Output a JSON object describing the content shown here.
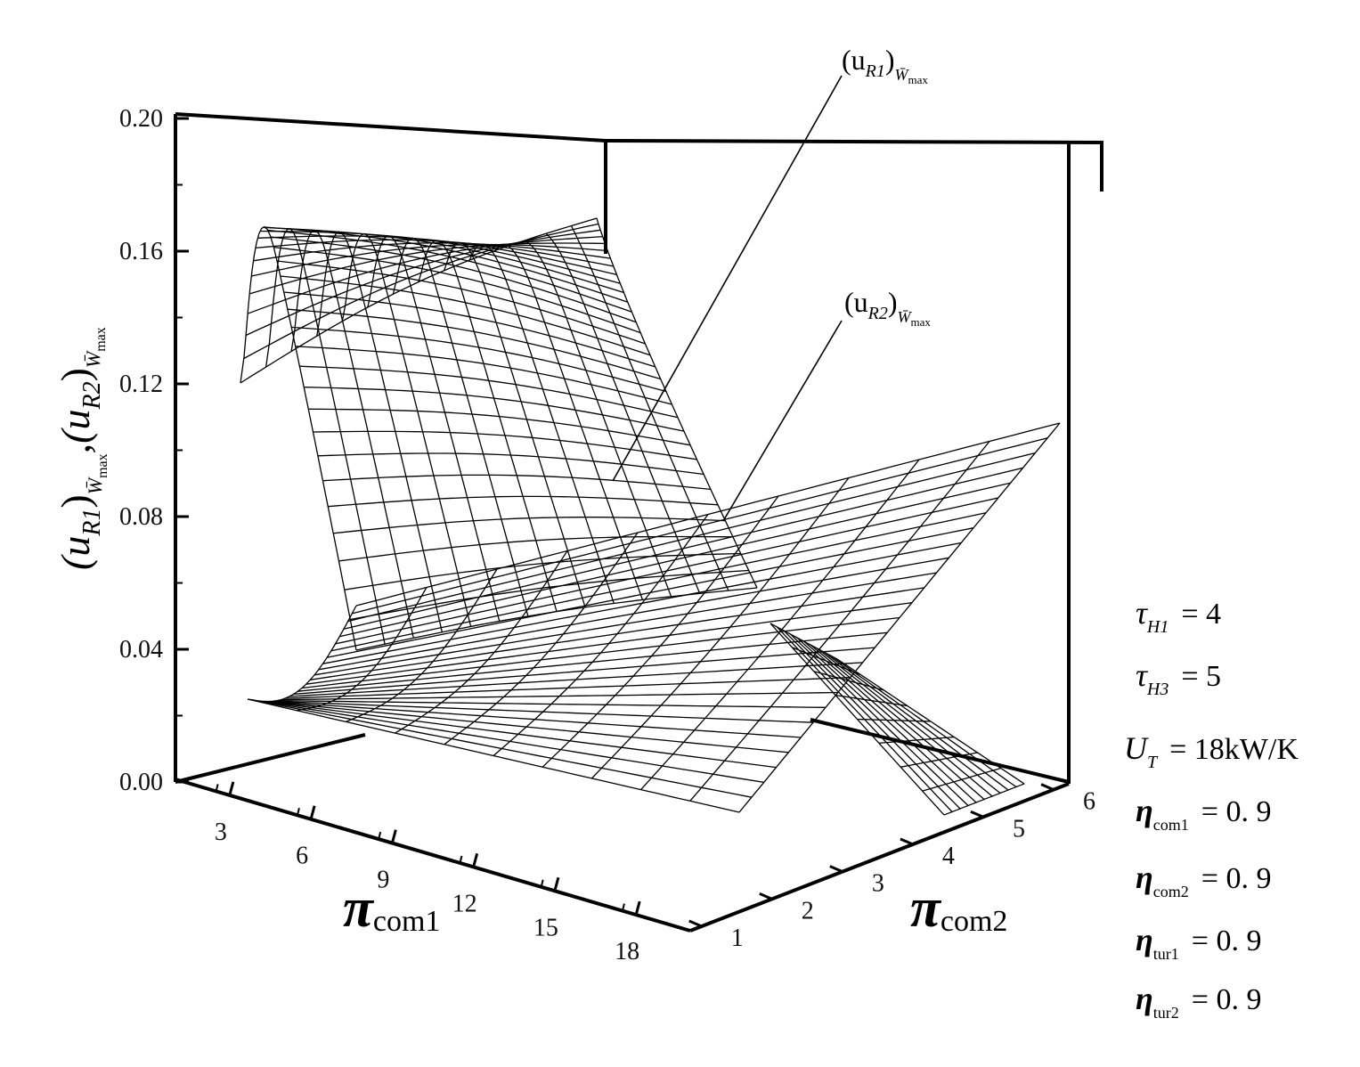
{
  "chart_data": {
    "type": "surface3d",
    "title": "",
    "z_axis": {
      "label_parts": [
        "(u",
        "R1",
        ")",
        "W̄",
        "max",
        ",(u",
        "R2",
        ")",
        "W̄",
        "max"
      ],
      "ticks": [
        "0.00",
        "0.04",
        "0.08",
        "0.12",
        "0.16",
        "0.20"
      ],
      "range": [
        0,
        0.2
      ]
    },
    "x_axis": {
      "label_main": "π",
      "label_sub": "com1",
      "ticks": [
        "3",
        "6",
        "9",
        "12",
        "15",
        "18"
      ],
      "range": [
        1,
        20
      ]
    },
    "y_axis": {
      "label_main": "π",
      "label_sub": "com2",
      "ticks": [
        "1",
        "2",
        "3",
        "4",
        "5",
        "6"
      ],
      "range": [
        1,
        6
      ]
    },
    "series": [
      {
        "name": "(u_R1)_Wmax",
        "label_parts": [
          "(u",
          "R1",
          ")",
          "W̄",
          "max"
        ]
      },
      {
        "name": "(u_R2)_Wmax",
        "label_parts": [
          "(u",
          "R2",
          ")",
          "W̄",
          "max"
        ]
      }
    ],
    "parameters": [
      {
        "sym": "τ",
        "sub": "H1",
        "val": "=  4"
      },
      {
        "sym": "τ",
        "sub": "H3",
        "val": "=  5"
      },
      {
        "sym": "U",
        "sub": "T",
        "val": "=  18kW/K"
      },
      {
        "sym": "η",
        "sub": "com1",
        "val": "=  0. 9"
      },
      {
        "sym": "η",
        "sub": "com2",
        "val": "=  0. 9"
      },
      {
        "sym": "η",
        "sub": "tur1",
        "val": "=  0. 9"
      },
      {
        "sym": "η",
        "sub": "tur2",
        "val": "=  0. 9"
      }
    ]
  }
}
